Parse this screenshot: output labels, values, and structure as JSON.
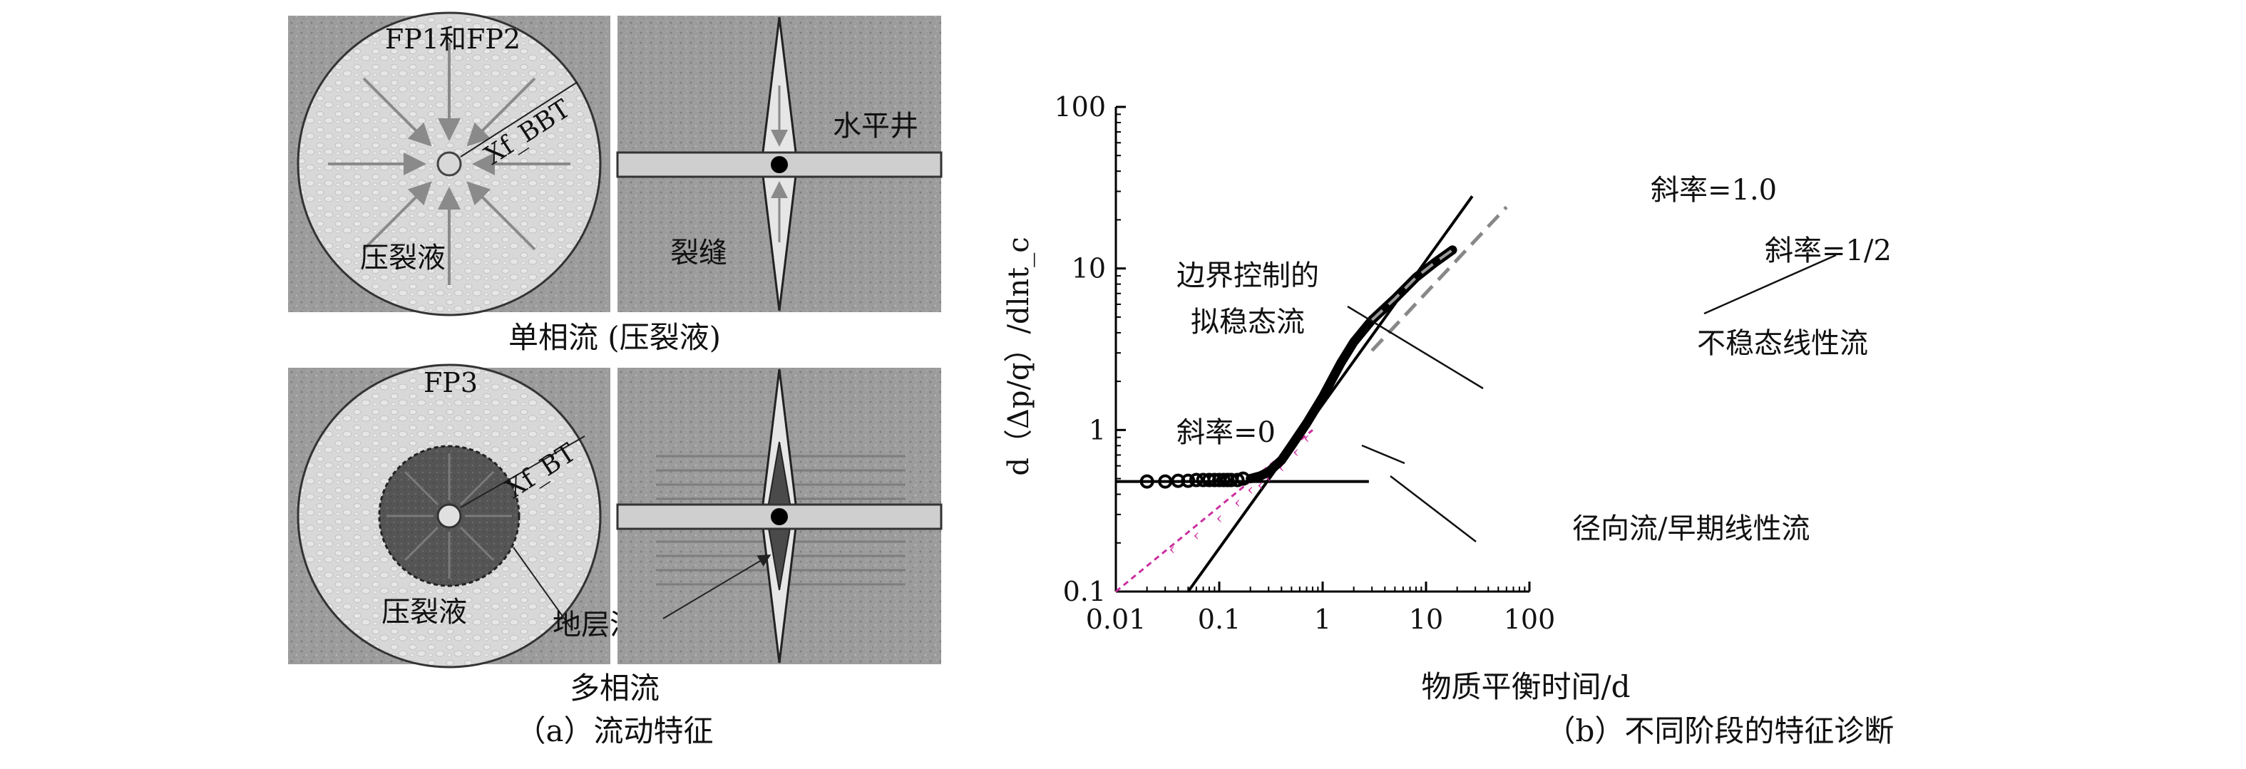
{
  "panel_a": {
    "top_left": {
      "title": "FP1和FP2",
      "xf_label": "Xf_BBT",
      "fluid_label": "压裂液"
    },
    "top_right": {
      "well_label": "水平井",
      "fracture_label": "裂缝"
    },
    "top_caption": "单相流 (压裂液)",
    "bottom_left": {
      "title": "FP3",
      "xf_label": "Xf_BT",
      "fluid_label": "压裂液",
      "oil_gas_label": "地层油气"
    },
    "bottom_caption": "多相流",
    "caption": "（a）流动特征"
  },
  "panel_b": {
    "caption": "（b）不同阶段的特征诊断",
    "annotations": {
      "slope_1": "斜率=1.0",
      "slope_half": "斜率=1/2",
      "slope_0": "斜率=0",
      "boundary_line1": "边界控制的",
      "boundary_line2": "拟稳态流",
      "unsteady": "不稳态线性流",
      "radial": "径向流/早期线性流"
    }
  },
  "chart_data": {
    "type": "scatter",
    "title": "",
    "xlabel": "物质平衡时间/d",
    "ylabel": "d（Δp/q）/dlnt_c",
    "xscale": "log",
    "yscale": "log",
    "xlim": [
      0.01,
      100
    ],
    "ylim": [
      0.1,
      100
    ],
    "xticks": [
      "0.01",
      "0.1",
      "1",
      "10",
      "100"
    ],
    "yticks": [
      "0.1",
      "1",
      "10",
      "100"
    ],
    "grid": false,
    "colors": {
      "data": "#000000",
      "dashed_half_slope": "#888888",
      "magenta": "#cc2f9f"
    },
    "series": [
      {
        "values": [
          [
            0.02,
            0.48
          ],
          [
            0.03,
            0.48
          ],
          [
            0.04,
            0.485
          ],
          [
            0.05,
            0.485
          ],
          [
            0.06,
            0.49
          ],
          [
            0.07,
            0.49
          ],
          [
            0.08,
            0.49
          ],
          [
            0.09,
            0.49
          ],
          [
            0.1,
            0.49
          ],
          [
            0.11,
            0.49
          ],
          [
            0.12,
            0.49
          ],
          [
            0.13,
            0.49
          ],
          [
            0.15,
            0.49
          ],
          [
            0.17,
            0.5
          ],
          [
            0.2,
            0.5
          ],
          [
            0.25,
            0.52
          ],
          [
            0.3,
            0.55
          ],
          [
            0.4,
            0.65
          ],
          [
            0.5,
            0.8
          ],
          [
            0.7,
            1.1
          ],
          [
            1.0,
            1.6
          ],
          [
            1.5,
            2.6
          ],
          [
            2.0,
            3.5
          ],
          [
            3.0,
            4.8
          ],
          [
            5.0,
            6.5
          ],
          [
            8.0,
            8.8
          ],
          [
            12.0,
            10.8
          ],
          [
            18.0,
            13.0
          ]
        ]
      },
      {
        "values": [
          [
            0.01,
            0.48
          ],
          [
            2.8,
            0.48
          ]
        ]
      },
      {
        "values": [
          [
            0.05,
            0.1
          ],
          [
            28.0,
            28.0
          ]
        ]
      },
      {
        "values": [
          [
            3.0,
            3.1
          ],
          [
            60.0,
            24.0
          ]
        ]
      },
      {
        "values": [
          [
            0.01,
            0.1
          ],
          [
            0.8,
            1.0
          ]
        ]
      },
      {
        "values": [
          [
            0.035,
            0.18
          ],
          [
            0.06,
            0.22
          ],
          [
            0.1,
            0.28
          ],
          [
            0.15,
            0.35
          ],
          [
            0.2,
            0.42
          ],
          [
            0.25,
            0.45
          ],
          [
            0.3,
            0.5
          ],
          [
            0.4,
            0.58
          ],
          [
            0.55,
            0.72
          ],
          [
            0.7,
            0.88
          ]
        ]
      }
    ]
  }
}
